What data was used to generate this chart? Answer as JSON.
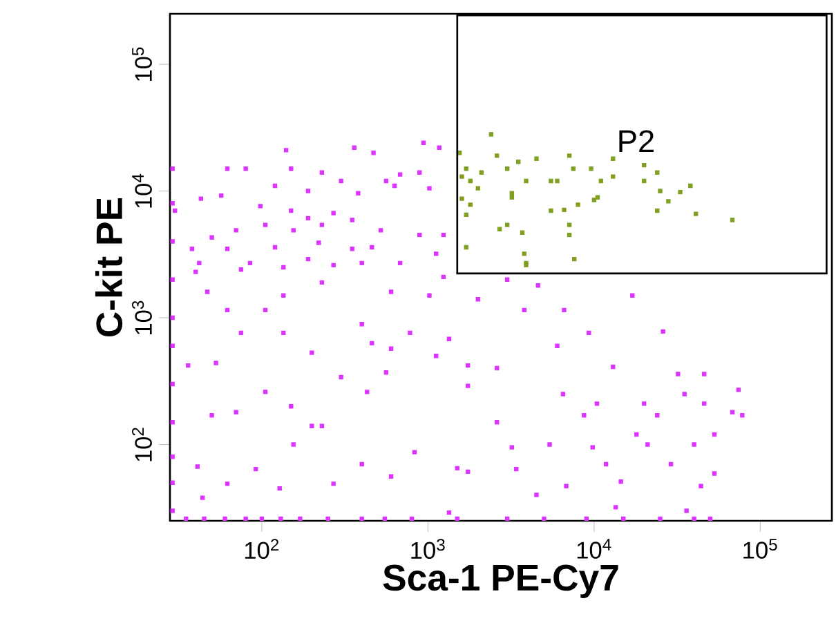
{
  "chart_data": {
    "type": "scatter",
    "xlabel": "Sca-1 PE-Cy7",
    "ylabel": "C-kit PE",
    "log": "xy",
    "grid": false,
    "marker": "square",
    "xlim": [
      28,
      270000
    ],
    "ylim": [
      25,
      250000
    ],
    "xticks": [
      {
        "value": 100,
        "label": "10$^{2}$"
      },
      {
        "value": 1000,
        "label": "10$^{3}$"
      },
      {
        "value": 10000,
        "label": "10$^{4}$"
      },
      {
        "value": 100000,
        "label": "10$^{5}$"
      }
    ],
    "yticks": [
      {
        "value": 100,
        "label": "10$^{2}$"
      },
      {
        "value": 1000,
        "label": "10$^{3}$"
      },
      {
        "value": 10000,
        "label": "10$^{4}$"
      },
      {
        "value": 100000,
        "label": "10$^{5}$"
      }
    ],
    "annotations": [
      "P2"
    ],
    "series": [
      {
        "color": "#dd33ff",
        "x": [
          140,
          360,
          940,
          1170,
          470,
          62,
          80,
          150,
          230,
          300,
          560,
          680,
          890,
          1020,
          630,
          380,
          190,
          120,
          57,
          43,
          98,
          150,
          190,
          270,
          350,
          230,
          155,
          105,
          70,
          50,
          38,
          62,
          120,
          220,
          350,
          520,
          460,
          890,
          1240,
          1120,
          680,
          400,
          190,
          85,
          42,
          30,
          40,
          75,
          135,
          270,
          1240,
          3000,
          4600,
          2000,
          17000,
          6600,
          3800,
          26000,
          9300,
          6000,
          1340,
          780,
          1120,
          1740,
          2600,
          1740,
          13000,
          32000,
          46000,
          74000,
          35000,
          20000,
          10400,
          6500,
          8700,
          24000,
          46000,
          68000,
          78000,
          53000,
          40000,
          21000,
          18000,
          9800,
          5400,
          2600,
          3200,
          3400,
          4500,
          6800,
          11800,
          14500,
          29000,
          44000,
          53000,
          13500,
          36000,
          1740,
          1500,
          830,
          600,
          1340,
          400,
          270,
          200,
          230,
          155,
          150,
          105,
          70,
          50,
          41,
          62,
          128,
          92,
          44,
          300,
          430,
          560,
          460,
          200,
          135,
          75,
          53,
          36,
          105,
          62,
          135,
          47,
          230,
          400,
          600,
          1020,
          600,
          29,
          29,
          29,
          29,
          29,
          29,
          29,
          29,
          29,
          29,
          29,
          35,
          45,
          60,
          80,
          100,
          130,
          170,
          250,
          400,
          550,
          800,
          1500,
          3000,
          5000,
          9000,
          15000,
          25000,
          40000,
          50000
        ],
        "values": [
          21000,
          22000,
          24000,
          22000,
          20000,
          15000,
          15000,
          15000,
          14000,
          12000,
          12000,
          13500,
          14000,
          10500,
          11000,
          9600,
          10000,
          11000,
          9200,
          8700,
          7600,
          7000,
          6100,
          6700,
          5900,
          5400,
          4900,
          5400,
          4900,
          4300,
          3500,
          3500,
          3600,
          3900,
          3500,
          4900,
          3600,
          4500,
          4500,
          3200,
          2700,
          2700,
          2900,
          2700,
          2700,
          7000,
          2300,
          2400,
          2500,
          2600,
          2100,
          2000,
          1800,
          1400,
          1500,
          1150,
          1150,
          780,
          760,
          600,
          680,
          760,
          500,
          420,
          400,
          290,
          410,
          360,
          360,
          270,
          250,
          210,
          210,
          250,
          170,
          170,
          210,
          180,
          170,
          120,
          100,
          100,
          120,
          95,
          100,
          150,
          95,
          64,
          40,
          47,
          70,
          51,
          70,
          47,
          59,
          32,
          30,
          61,
          65,
          87,
          56,
          29,
          70,
          49,
          140,
          140,
          100,
          200,
          260,
          180,
          170,
          67,
          49,
          45,
          64,
          38,
          340,
          260,
          370,
          630,
          530,
          760,
          760,
          440,
          420,
          1150,
          1150,
          1500,
          1600,
          1900,
          890,
          570,
          1500,
          1600,
          30,
          50,
          80,
          150,
          300,
          600,
          1000,
          2000,
          4000,
          8000,
          15000,
          26,
          26,
          26,
          26,
          26,
          26,
          26,
          26,
          26,
          26,
          26,
          26,
          26,
          26,
          26,
          26,
          26,
          26,
          26
        ]
      },
      {
        "color": "#7fa020",
        "x": [
          1550,
          2400,
          2600,
          3500,
          4500,
          7100,
          7500,
          9600,
          13000,
          20000,
          24000,
          13000,
          11000,
          20000,
          25000,
          38000,
          33000,
          28000,
          41000,
          68000,
          24000,
          10000,
          8000,
          6600,
          5500,
          5500,
          6000,
          3200,
          3200,
          3900,
          3000,
          2100,
          1800,
          2000,
          1700,
          1600,
          1600,
          1800,
          1700,
          3000,
          2700,
          3700,
          7100,
          7100,
          1700,
          3800,
          3900,
          7600,
          10500,
          3900
        ],
        "values": [
          20000,
          28000,
          19000,
          17000,
          18000,
          19000,
          15000,
          15000,
          18000,
          16000,
          14000,
          13000,
          12000,
          12000,
          10000,
          11000,
          9800,
          8300,
          6600,
          5900,
          7000,
          8500,
          7800,
          7100,
          7000,
          12000,
          12000,
          9600,
          8900,
          12000,
          15000,
          14000,
          12000,
          10500,
          15000,
          13000,
          8700,
          7800,
          6500,
          5400,
          5000,
          4700,
          5400,
          4500,
          3600,
          3200,
          2700,
          2900,
          8900,
          2600
        ]
      }
    ]
  }
}
